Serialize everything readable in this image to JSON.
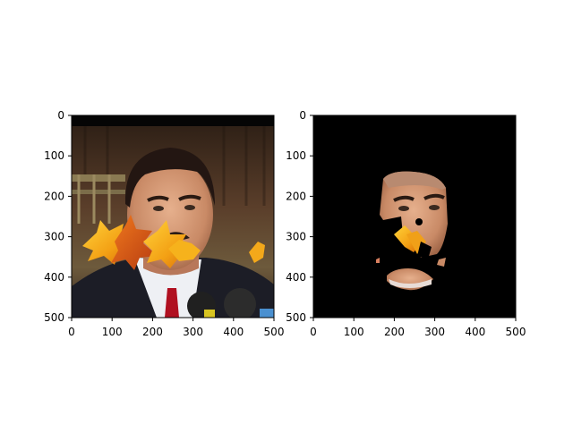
{
  "panels": [
    {
      "name": "left",
      "xticks": [
        "0",
        "100",
        "200",
        "300",
        "400",
        "500"
      ],
      "yticks": [
        "0",
        "100",
        "200",
        "300",
        "400",
        "500"
      ]
    },
    {
      "name": "right",
      "xticks": [
        "0",
        "100",
        "200",
        "300",
        "400",
        "500"
      ],
      "yticks": [
        "0",
        "100",
        "200",
        "300",
        "400",
        "500"
      ]
    }
  ]
}
